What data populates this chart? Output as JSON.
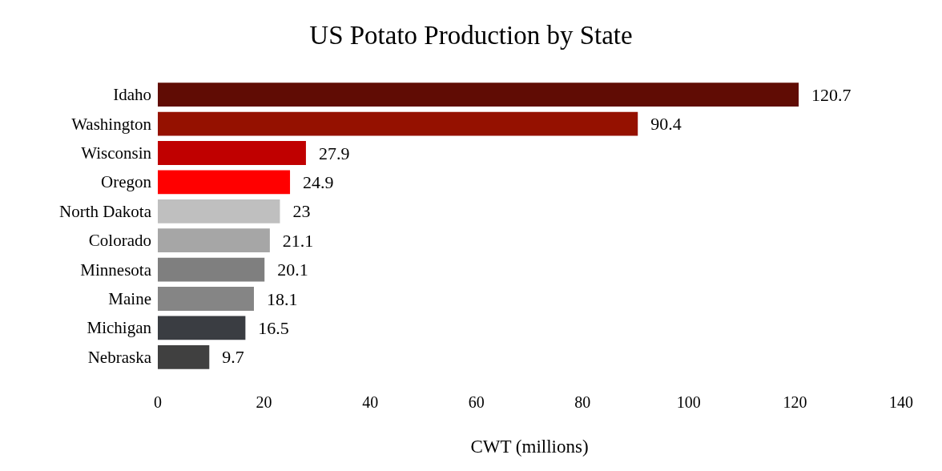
{
  "chart_data": {
    "type": "bar",
    "orientation": "horizontal",
    "title": "US Potato Production by State",
    "xlabel": "CWT (millions)",
    "categories": [
      "Idaho",
      "Washington",
      "Wisconsin",
      "Oregon",
      "North Dakota",
      "Colorado",
      "Minnesota",
      "Maine",
      "Michigan",
      "Nebraska"
    ],
    "values": [
      120.7,
      90.4,
      27.9,
      24.9,
      23,
      21.1,
      20.1,
      18.1,
      16.5,
      9.7
    ],
    "colors": [
      "#600c04",
      "#951100",
      "#c00000",
      "#ff0000",
      "#bfbfbf",
      "#a6a6a6",
      "#7f7f7f",
      "#858585",
      "#3a3d42",
      "#404040"
    ],
    "xlim": [
      0,
      140
    ],
    "xticks": [
      0,
      20,
      40,
      60,
      80,
      100,
      120,
      140
    ],
    "data_labels": true,
    "grid": false
  }
}
